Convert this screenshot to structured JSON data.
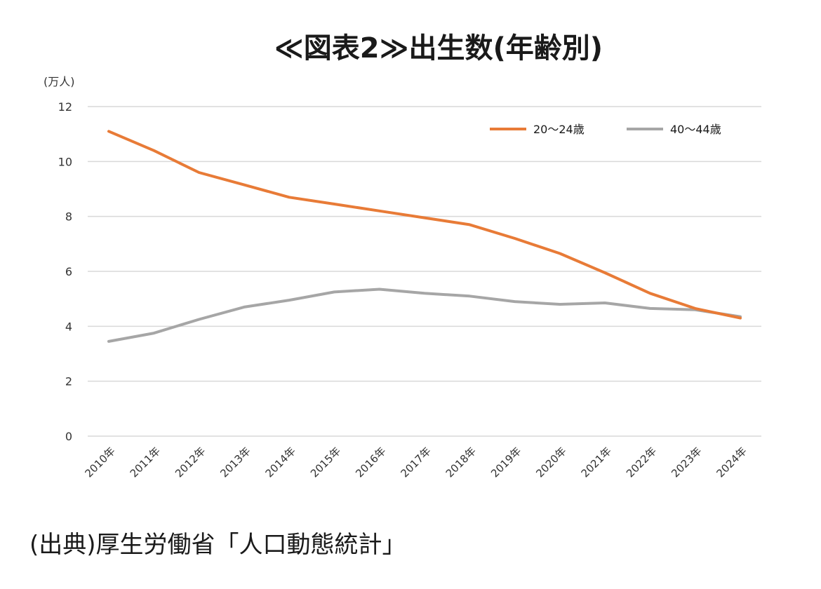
{
  "chart_data": {
    "type": "line",
    "title": "≪図表2≫出生数(年齢別)",
    "ylabel": "(万人)",
    "xlabel": "",
    "ylim": [
      0,
      12
    ],
    "yticks": [
      0,
      2,
      4,
      6,
      8,
      10,
      12
    ],
    "grid": true,
    "legend_position": "top-right",
    "categories": [
      "2010年",
      "2011年",
      "2012年",
      "2013年",
      "2014年",
      "2015年",
      "2016年",
      "2017年",
      "2018年",
      "2019年",
      "2020年",
      "2021年",
      "2022年",
      "2023年",
      "2024年"
    ],
    "series": [
      {
        "name": "20～24歳",
        "color": "#e87b37",
        "values": [
          11.1,
          10.4,
          9.6,
          9.15,
          8.7,
          8.45,
          8.2,
          7.95,
          7.7,
          7.2,
          6.65,
          5.95,
          5.2,
          4.65,
          4.3
        ]
      },
      {
        "name": "40～44歳",
        "color": "#a6a6a6",
        "values": [
          3.45,
          3.75,
          4.25,
          4.7,
          4.95,
          5.25,
          5.35,
          5.2,
          5.1,
          4.9,
          4.8,
          4.85,
          4.65,
          4.6,
          4.35
        ]
      }
    ]
  },
  "source_note": "(出典)厚生労働省「人口動態統計」"
}
